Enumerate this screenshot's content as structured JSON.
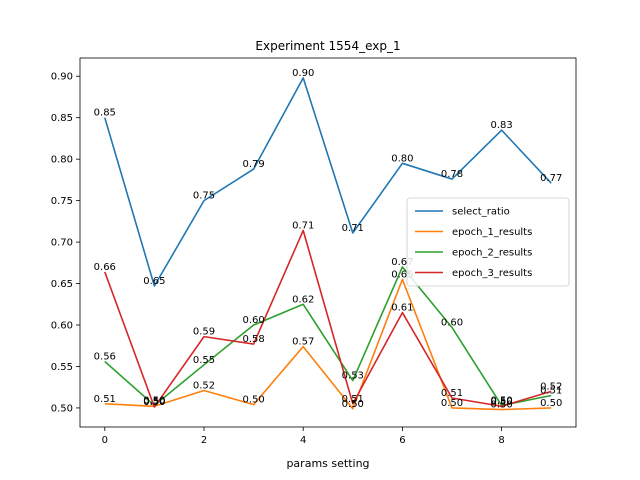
{
  "chart_data": {
    "type": "line",
    "title": "Experiment 1554_exp_1",
    "xlabel": "params setting",
    "ylabel": "",
    "x": [
      0,
      1,
      2,
      3,
      4,
      5,
      6,
      7,
      8,
      9
    ],
    "xlim": [
      -0.5,
      9.5
    ],
    "ylim": [
      0.477,
      0.922
    ],
    "xticks": [
      0,
      2,
      4,
      6,
      8
    ],
    "yticks": [
      0.5,
      0.55,
      0.6,
      0.65,
      0.7,
      0.75,
      0.8,
      0.85,
      0.9
    ],
    "grid": false,
    "legend_position": "center-right",
    "series": [
      {
        "name": "select_ratio",
        "color": "#1f77b4",
        "values": [
          0.85,
          0.647,
          0.75,
          0.788,
          0.898,
          0.711,
          0.795,
          0.776,
          0.835,
          0.771
        ],
        "labels": [
          "0.85",
          "0.65",
          "0.75",
          "0.79",
          "0.90",
          "0.71",
          "0.80",
          "0.78",
          "0.83",
          "0.77"
        ]
      },
      {
        "name": "epoch_1_results",
        "color": "#ff7f0e",
        "values": [
          0.505,
          0.502,
          0.521,
          0.504,
          0.574,
          0.499,
          0.655,
          0.5,
          0.498,
          0.5
        ],
        "labels": [
          "0.51",
          "0.50",
          "0.52",
          "0.50",
          "0.57",
          "0.50",
          "0.65",
          "0.50",
          "0.50",
          "0.50"
        ]
      },
      {
        "name": "epoch_2_results",
        "color": "#2ca02c",
        "values": [
          0.556,
          0.503,
          0.552,
          0.6,
          0.625,
          0.533,
          0.67,
          0.597,
          0.503,
          0.515
        ],
        "labels": [
          "0.56",
          "0.50",
          "0.55",
          "0.60",
          "0.62",
          "0.53",
          "0.67",
          "0.60",
          "0.50",
          "0.51"
        ]
      },
      {
        "name": "epoch_3_results",
        "color": "#d62728",
        "values": [
          0.664,
          0.501,
          0.586,
          0.577,
          0.714,
          0.505,
          0.615,
          0.512,
          0.502,
          0.52
        ],
        "labels": [
          "0.66",
          "0.50",
          "0.59",
          "0.58",
          "0.71",
          "0.51",
          "0.61",
          "0.51",
          "0.50",
          "0.52"
        ]
      }
    ]
  }
}
